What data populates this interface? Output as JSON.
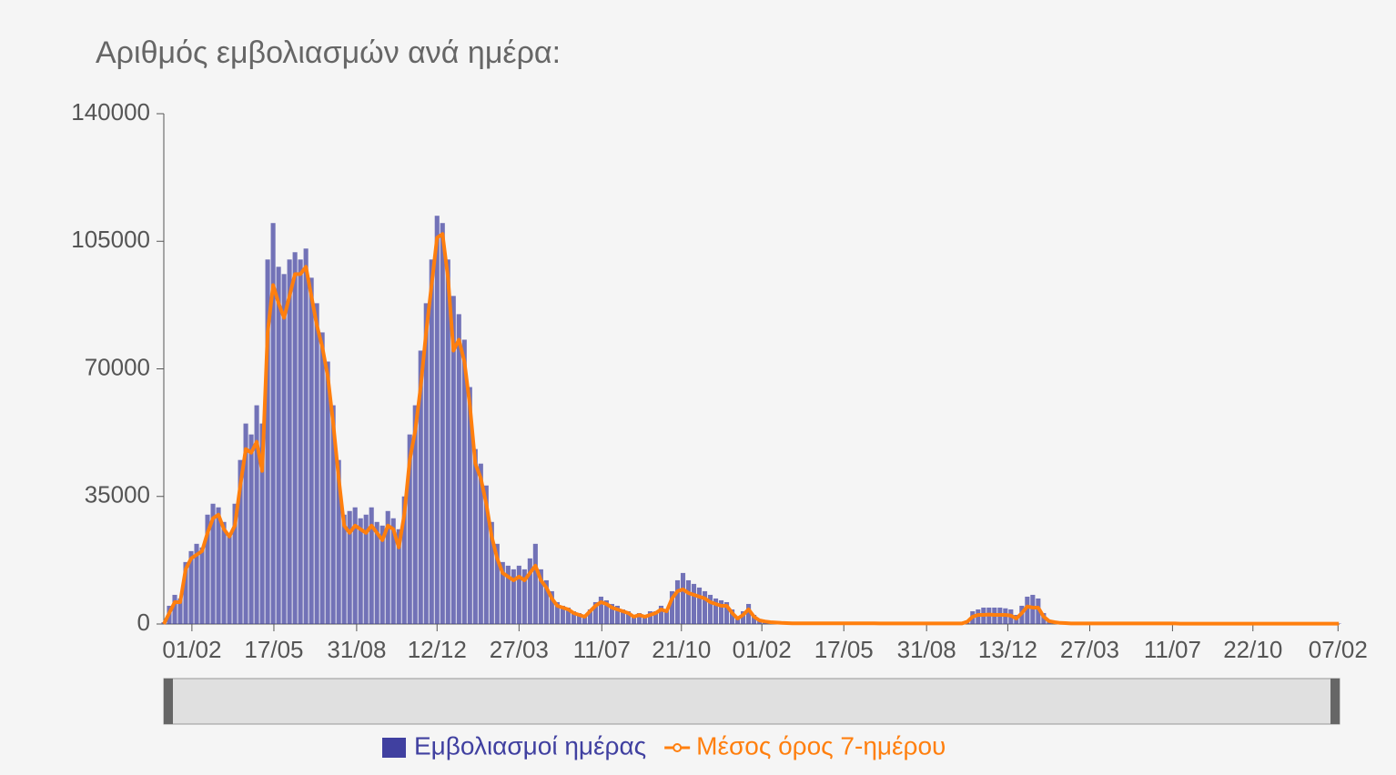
{
  "chart_data": {
    "type": "bar-line",
    "title": "Αριθμός εμβολιασμών ανά ημέρα:",
    "x": [
      0,
      7,
      14,
      21,
      28,
      35,
      42,
      49,
      56,
      63,
      70,
      77,
      84,
      91,
      98,
      105,
      112,
      119,
      126,
      133,
      140,
      147,
      154,
      161,
      168,
      175,
      182,
      189,
      196,
      203,
      210,
      217,
      224,
      231,
      238,
      245,
      252,
      259,
      266,
      273,
      280,
      287,
      294,
      301,
      308,
      315,
      322,
      329,
      336,
      343,
      350,
      357,
      364,
      371,
      378,
      385,
      392,
      399,
      406,
      413,
      420,
      427,
      434,
      441,
      448,
      455,
      462,
      469,
      476,
      483,
      490,
      497,
      504,
      511,
      518,
      525,
      532,
      539,
      546,
      553,
      560,
      567,
      574,
      581,
      588,
      595,
      602,
      609,
      616,
      623,
      630,
      637,
      644,
      651,
      658,
      665,
      672,
      679,
      686,
      693,
      700,
      707,
      714,
      721,
      728,
      735,
      742,
      749,
      756,
      763,
      770,
      777,
      784,
      791,
      798,
      805,
      812,
      819,
      826,
      833,
      840,
      847,
      854,
      861,
      868,
      875,
      882,
      889,
      896,
      903,
      910,
      917,
      924,
      931,
      938,
      945,
      952,
      959,
      966,
      973,
      980,
      987,
      994,
      1001,
      1008,
      1015,
      1022,
      1029,
      1036,
      1043,
      1050,
      1057,
      1064,
      1071,
      1078,
      1085,
      1092,
      1099,
      1106,
      1113,
      1120,
      1127,
      1134,
      1141,
      1148,
      1155,
      1162,
      1169,
      1176,
      1183,
      1190,
      1197,
      1204,
      1211,
      1218,
      1225,
      1232,
      1239,
      1246,
      1253,
      1260,
      1267,
      1274,
      1281,
      1288,
      1295,
      1302,
      1309,
      1316,
      1323,
      1330,
      1337,
      1344,
      1351,
      1358,
      1365,
      1372,
      1379,
      1386,
      1393,
      1400,
      1407,
      1414,
      1421,
      1428,
      1435,
      1442,
      1449,
      1456,
      1463,
      1470,
      1477,
      1484,
      1491,
      1498,
      1505
    ],
    "series": [
      {
        "name": "Εμβολιασμοί ημέρας",
        "type": "bar",
        "color": "#4040a0",
        "values": [
          500,
          5000,
          8000,
          7000,
          17000,
          20000,
          22000,
          21000,
          30000,
          33000,
          32000,
          28000,
          25000,
          33000,
          45000,
          55000,
          52000,
          60000,
          55000,
          100000,
          110000,
          98000,
          96000,
          100000,
          102000,
          100000,
          103000,
          95000,
          88000,
          80000,
          72000,
          60000,
          45000,
          30000,
          31000,
          32000,
          29000,
          30000,
          32000,
          28000,
          27000,
          31000,
          29000,
          26000,
          35000,
          52000,
          60000,
          75000,
          88000,
          100000,
          112000,
          110000,
          100000,
          90000,
          85000,
          78000,
          65000,
          48000,
          44000,
          38000,
          28000,
          22000,
          17000,
          16000,
          15000,
          16000,
          15000,
          18000,
          22000,
          15000,
          12000,
          9000,
          6000,
          5000,
          4500,
          3500,
          3000,
          2500,
          4000,
          6000,
          7500,
          6500,
          5500,
          5000,
          4000,
          3500,
          2500,
          3000,
          2500,
          3500,
          3500,
          5000,
          4000,
          9000,
          12000,
          14000,
          12000,
          11000,
          10000,
          9000,
          8000,
          7000,
          6500,
          6000,
          4000,
          2000,
          3500,
          5500,
          2500,
          1200,
          800,
          600,
          500,
          350,
          300,
          250,
          250,
          250,
          250,
          250,
          250,
          250,
          250,
          250,
          250,
          250,
          250,
          250,
          250,
          250,
          250,
          200,
          200,
          200,
          200,
          200,
          200,
          200,
          200,
          200,
          200,
          200,
          200,
          200,
          200,
          200,
          200,
          1000,
          3500,
          4000,
          4500,
          4500,
          4500,
          4500,
          4300,
          4000,
          2500,
          5000,
          7500,
          8000,
          7000,
          3000,
          1000,
          600,
          400,
          300,
          180,
          180,
          180,
          180,
          180,
          180,
          180,
          180,
          180,
          180,
          180,
          180,
          180,
          180,
          180,
          180,
          180,
          180,
          180,
          180,
          120,
          120,
          120,
          120,
          120,
          120,
          120,
          120,
          120,
          120,
          120,
          120,
          120,
          120,
          120,
          120,
          120,
          120,
          120,
          120,
          120,
          120,
          120,
          120,
          120,
          120,
          120,
          120,
          120,
          120
        ]
      },
      {
        "name": "Μέσος όρος 7-ημέρου",
        "type": "line",
        "color": "#ff7f0e",
        "values": [
          0,
          3000,
          6000,
          6000,
          15000,
          18000,
          19000,
          20000,
          25000,
          29000,
          30000,
          26000,
          24000,
          27000,
          38000,
          48000,
          47000,
          50000,
          42000,
          80000,
          93000,
          88000,
          84000,
          90000,
          96000,
          96000,
          98000,
          90000,
          82000,
          76000,
          68000,
          55000,
          40000,
          27000,
          25000,
          27000,
          26000,
          25000,
          27000,
          25000,
          23000,
          27000,
          26000,
          21000,
          30000,
          45000,
          53000,
          65000,
          80000,
          93000,
          106000,
          107000,
          95000,
          75000,
          78000,
          72000,
          60000,
          44000,
          40000,
          33000,
          24000,
          18000,
          14000,
          13000,
          12000,
          13000,
          12000,
          14000,
          16000,
          12000,
          10000,
          7000,
          5000,
          4500,
          4000,
          3000,
          2500,
          2000,
          3500,
          5000,
          6000,
          5500,
          4500,
          4000,
          3500,
          3000,
          2000,
          2500,
          2000,
          2500,
          3000,
          4000,
          3500,
          7000,
          9000,
          9500,
          8500,
          8000,
          7500,
          7000,
          6000,
          5500,
          5000,
          5000,
          3000,
          1500,
          2500,
          4000,
          2000,
          1000,
          700,
          500,
          400,
          300,
          250,
          200,
          200,
          200,
          200,
          200,
          200,
          200,
          200,
          200,
          200,
          200,
          200,
          200,
          200,
          200,
          200,
          150,
          150,
          150,
          150,
          150,
          150,
          150,
          150,
          150,
          150,
          150,
          150,
          150,
          150,
          150,
          150,
          600,
          2000,
          2500,
          2500,
          2600,
          2500,
          2500,
          2500,
          2300,
          1500,
          3000,
          4800,
          4500,
          4500,
          2000,
          800,
          500,
          300,
          250,
          150,
          150,
          150,
          150,
          150,
          150,
          150,
          150,
          150,
          150,
          150,
          150,
          150,
          150,
          150,
          150,
          150,
          150,
          150,
          150,
          100,
          100,
          100,
          100,
          100,
          100,
          100,
          100,
          100,
          100,
          100,
          100,
          100,
          100,
          100,
          100,
          100,
          100,
          100,
          100,
          100,
          100,
          100,
          100,
          100,
          100,
          100,
          100,
          100,
          100
        ]
      }
    ],
    "xlim": [
      0,
      1506
    ],
    "xticks": [
      {
        "value": 36,
        "label": "01/02"
      },
      {
        "value": 141,
        "label": "17/05"
      },
      {
        "value": 247,
        "label": "31/08"
      },
      {
        "value": 350,
        "label": "12/12"
      },
      {
        "value": 455,
        "label": "27/03"
      },
      {
        "value": 561,
        "label": "11/07"
      },
      {
        "value": 663,
        "label": "21/10"
      },
      {
        "value": 766,
        "label": "01/02"
      },
      {
        "value": 871,
        "label": "17/05"
      },
      {
        "value": 977,
        "label": "31/08"
      },
      {
        "value": 1081,
        "label": "13/12"
      },
      {
        "value": 1186,
        "label": "27/03"
      },
      {
        "value": 1292,
        "label": "11/07"
      },
      {
        "value": 1395,
        "label": "22/10"
      },
      {
        "value": 1504,
        "label": "07/02"
      }
    ],
    "ylim": [
      0,
      140000
    ],
    "yticks": [
      0,
      35000,
      70000,
      105000,
      140000
    ],
    "grid": false,
    "legend": "bottom"
  }
}
